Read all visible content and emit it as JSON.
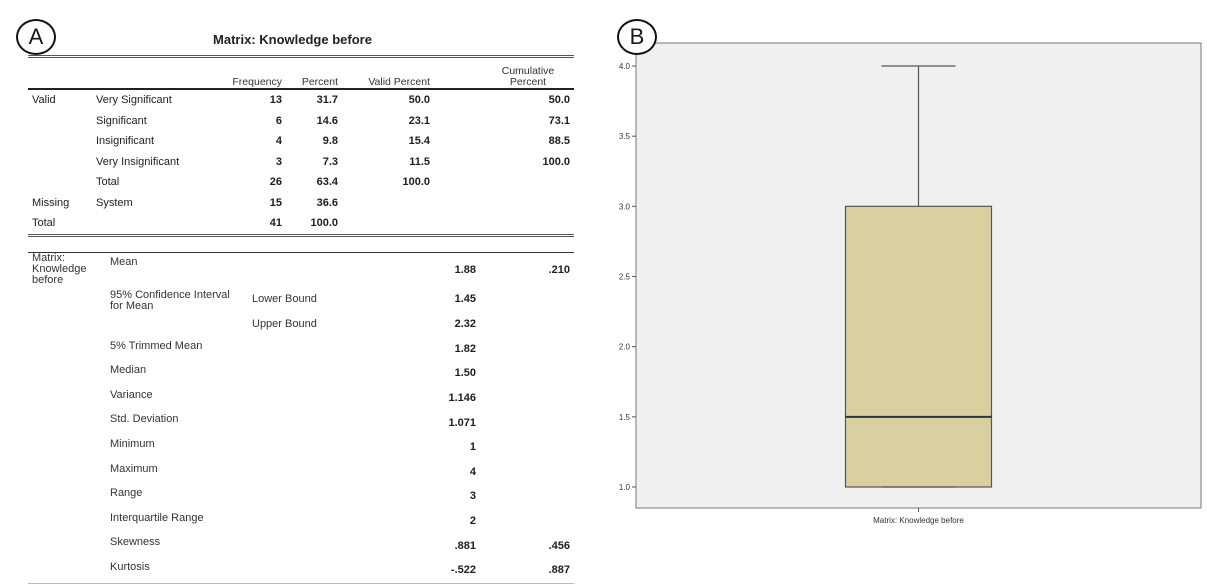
{
  "panel_a": {
    "badge": "A",
    "title": "Matrix: Knowledge before",
    "freq_headers": [
      "Frequency",
      "Percent",
      "Valid Percent",
      "Cumulative Percent"
    ],
    "freq_rows": [
      {
        "group": "Valid",
        "label": "Very Significant",
        "frequency": "13",
        "percent": "31.7",
        "valid_percent": "50.0",
        "cumulative": "50.0"
      },
      {
        "group": "",
        "label": "Significant",
        "frequency": "6",
        "percent": "14.6",
        "valid_percent": "23.1",
        "cumulative": "73.1"
      },
      {
        "group": "",
        "label": "Insignificant",
        "frequency": "4",
        "percent": "9.8",
        "valid_percent": "15.4",
        "cumulative": "88.5"
      },
      {
        "group": "",
        "label": "Very Insignificant",
        "frequency": "3",
        "percent": "7.3",
        "valid_percent": "11.5",
        "cumulative": "100.0"
      },
      {
        "group": "",
        "label": "Total",
        "frequency": "26",
        "percent": "63.4",
        "valid_percent": "100.0",
        "cumulative": ""
      },
      {
        "group": "Missing",
        "label": "System",
        "frequency": "15",
        "percent": "36.6",
        "valid_percent": "",
        "cumulative": ""
      },
      {
        "group": "Total",
        "label": "",
        "frequency": "41",
        "percent": "100.0",
        "valid_percent": "",
        "cumulative": ""
      }
    ],
    "desc_variable": "Matrix: Knowledge before",
    "desc_rows": [
      {
        "stat": "Mean",
        "sub": "",
        "value": "1.88",
        "se": ".210"
      },
      {
        "stat": "95% Confidence Interval for Mean",
        "sub": "Lower Bound",
        "value": "1.45",
        "se": ""
      },
      {
        "stat": "",
        "sub": "Upper Bound",
        "value": "2.32",
        "se": ""
      },
      {
        "stat": "5% Trimmed Mean",
        "sub": "",
        "value": "1.82",
        "se": ""
      },
      {
        "stat": "Median",
        "sub": "",
        "value": "1.50",
        "se": ""
      },
      {
        "stat": "Variance",
        "sub": "",
        "value": "1.146",
        "se": ""
      },
      {
        "stat": "Std. Deviation",
        "sub": "",
        "value": "1.071",
        "se": ""
      },
      {
        "stat": "Minimum",
        "sub": "",
        "value": "1",
        "se": ""
      },
      {
        "stat": "Maximum",
        "sub": "",
        "value": "4",
        "se": ""
      },
      {
        "stat": "Range",
        "sub": "",
        "value": "3",
        "se": ""
      },
      {
        "stat": "Interquartile Range",
        "sub": "",
        "value": "2",
        "se": ""
      },
      {
        "stat": "Skewness",
        "sub": "",
        "value": ".881",
        "se": ".456"
      },
      {
        "stat": "Kurtosis",
        "sub": "",
        "value": "-.522",
        "se": ".887"
      }
    ]
  },
  "panel_b": {
    "badge": "B"
  },
  "chart_data": {
    "type": "boxplot",
    "xlabel": "Matrix: Knowledge before",
    "ylabel": "",
    "yticks": [
      "1.0",
      "1.5",
      "2.0",
      "2.5",
      "3.0",
      "3.5",
      "4.0"
    ],
    "ylim": [
      1.0,
      4.0
    ],
    "series": [
      {
        "category": "Matrix: Knowledge before",
        "min": 1.0,
        "q1": 1.0,
        "median": 1.5,
        "q3": 3.0,
        "max": 4.0
      }
    ],
    "grid": false,
    "colors": {
      "box_fill": "#d9d09f",
      "plot_bg": "#f0f0f0",
      "line": "#555555"
    }
  }
}
